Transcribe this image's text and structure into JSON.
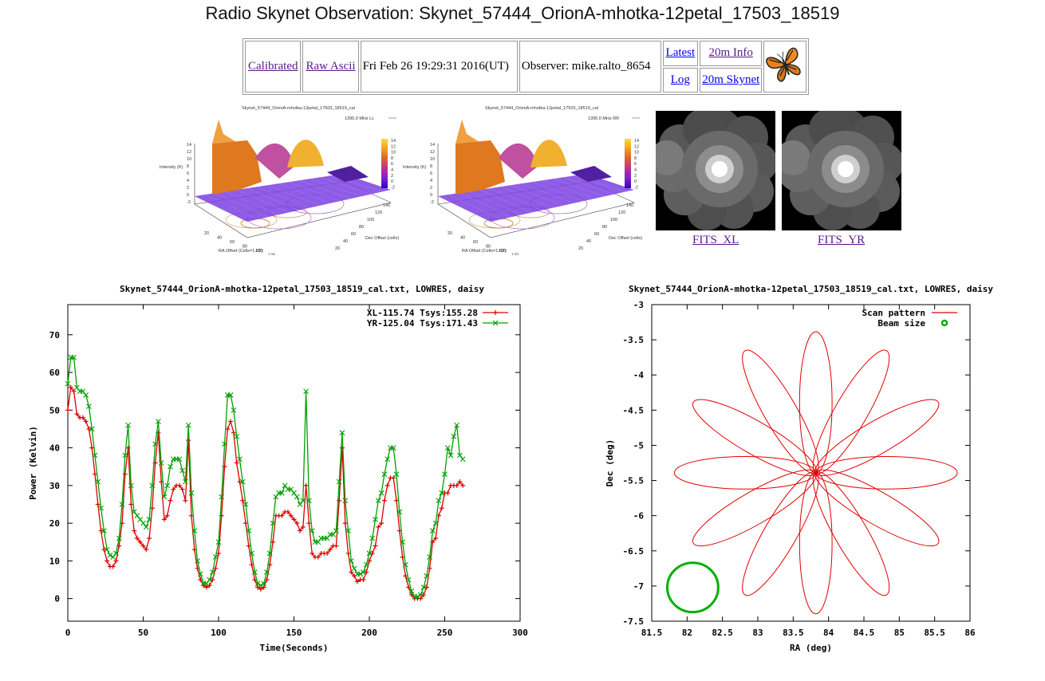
{
  "page": {
    "title": "Radio Skynet Observation: Skynet_57444_OrionA-mhotka-12petal_17503_18519"
  },
  "nav": {
    "calibrated": "Calibrated",
    "raw_ascii": "Raw Ascii",
    "timestamp": "Fri Feb 26 19:29:31 2016(UT)",
    "observer": "Observer: mike.ralto_8654",
    "latest": "Latest",
    "log": "Log",
    "info_20m": "20m Info",
    "skynet_20m": "20m Skynet",
    "logo_icon": "butterfly-icon"
  },
  "thumbnails": {
    "ll": {
      "title": "Skynet_57444_OrionA-mhotka-12petal_17503_18519_cal",
      "legend": "1395.0 MHz LL",
      "zlabel": "Intensity (K)",
      "xlabel": "RA Offset (Cells=1.62')",
      "ylabel": "Dec Offset (cells)",
      "colorbar_ticks": [
        "14",
        "12",
        "10",
        "8",
        "6",
        "4",
        "2",
        "0",
        "-2"
      ],
      "ztick_labels": [
        "14",
        "12",
        "10",
        "8",
        "6",
        "4",
        "2",
        "0",
        "-2"
      ],
      "ra_ticks": [
        "20",
        "40",
        "60",
        "80",
        "100",
        "120",
        "140"
      ],
      "dec_ticks": [
        "20",
        "40",
        "60",
        "80",
        "100",
        "120",
        "140"
      ]
    },
    "rr": {
      "title": "Skynet_57444_OrionA-mhotka-12petal_17503_18519_cal",
      "legend": "1395.0 MHz RR",
      "zlabel": "Intensity (K)",
      "xlabel": "RA Offset (Cells=1.62')",
      "ylabel": "Dec Offset (cells)",
      "colorbar_ticks": [
        "14",
        "12",
        "10",
        "8",
        "6",
        "4",
        "2",
        "0",
        "-2"
      ],
      "ztick_labels": [
        "14",
        "12",
        "10",
        "8",
        "6",
        "4",
        "2",
        "0",
        "-2"
      ],
      "ra_ticks": [
        "20",
        "40",
        "60",
        "80",
        "100",
        "120",
        "140"
      ],
      "dec_ticks": [
        "20",
        "40",
        "60",
        "80",
        "100",
        "120",
        "140"
      ]
    },
    "fits_xl": "FITS_XL",
    "fits_yr": "FITS_YR"
  },
  "chart_data": [
    {
      "type": "line",
      "title": "Skynet_57444_OrionA-mhotka-12petal_17503_18519_cal.txt, LOWRES, daisy",
      "xlabel": "Time(Seconds)",
      "ylabel": "Power (Kelvin)",
      "xlim": [
        0,
        300
      ],
      "ylim": [
        -6,
        78
      ],
      "x_ticks": [
        0,
        50,
        100,
        150,
        200,
        250,
        300
      ],
      "y_ticks": [
        0,
        10,
        20,
        30,
        40,
        50,
        60,
        70
      ],
      "legend_position": "top-right",
      "grid": false,
      "series": [
        {
          "name": "XL-115.74 Tsys:155.28",
          "color": "#e00000",
          "x": [
            0,
            2,
            4,
            6,
            8,
            10,
            12,
            14,
            16,
            18,
            20,
            22,
            24,
            26,
            28,
            30,
            32,
            34,
            36,
            38,
            40,
            42,
            44,
            46,
            48,
            50,
            52,
            54,
            56,
            58,
            60,
            62,
            64,
            66,
            68,
            70,
            72,
            74,
            76,
            78,
            80,
            82,
            84,
            86,
            88,
            90,
            92,
            94,
            96,
            98,
            100,
            102,
            104,
            106,
            108,
            110,
            112,
            114,
            116,
            118,
            120,
            122,
            124,
            126,
            128,
            130,
            132,
            134,
            136,
            138,
            140,
            142,
            144,
            146,
            148,
            150,
            152,
            154,
            156,
            158,
            160,
            162,
            164,
            166,
            168,
            170,
            172,
            174,
            176,
            178,
            180,
            182,
            184,
            186,
            188,
            190,
            192,
            194,
            196,
            198,
            200,
            202,
            204,
            206,
            208,
            210,
            212,
            214,
            216,
            218,
            220,
            222,
            224,
            226,
            228,
            230,
            232,
            234,
            236,
            238,
            240,
            242,
            244,
            246,
            248,
            250,
            252,
            254,
            256,
            258,
            260,
            262
          ],
          "values": [
            50,
            56,
            55,
            49,
            48,
            48,
            47,
            45,
            40,
            33,
            25,
            18,
            13,
            10,
            8.5,
            8.5,
            10,
            14,
            20,
            33,
            40,
            25,
            18,
            16,
            15,
            14,
            13,
            16,
            24,
            36,
            44,
            31,
            21,
            22,
            26,
            29,
            30,
            30,
            29,
            26,
            42,
            22,
            13,
            8,
            5,
            3.5,
            3,
            3.5,
            5,
            8,
            12,
            22,
            35,
            45,
            47,
            44,
            36,
            31,
            26,
            20,
            14,
            9,
            5,
            3,
            2.5,
            3,
            5,
            9,
            15,
            22,
            22,
            22,
            23,
            23,
            22,
            21,
            20,
            18,
            19,
            30,
            20,
            12,
            11,
            11,
            12,
            12,
            12,
            13,
            14,
            14,
            26,
            40,
            20,
            12,
            7,
            6,
            4.5,
            5,
            5,
            7,
            10,
            12,
            14,
            19,
            20,
            26,
            30,
            32,
            32,
            26,
            18,
            11,
            6,
            3,
            1,
            0,
            0,
            0,
            1,
            3,
            8,
            15,
            16,
            22,
            24,
            28,
            28,
            30,
            30,
            30,
            31,
            30
          ]
        },
        {
          "name": "YR-125.04 Tsys:171.43",
          "color": "#00a000",
          "x": [
            0,
            2,
            4,
            6,
            8,
            10,
            12,
            14,
            16,
            18,
            20,
            22,
            24,
            26,
            28,
            30,
            32,
            34,
            36,
            38,
            40,
            42,
            44,
            46,
            48,
            50,
            52,
            54,
            56,
            58,
            60,
            62,
            64,
            66,
            68,
            70,
            72,
            74,
            76,
            78,
            80,
            82,
            84,
            86,
            88,
            90,
            92,
            94,
            96,
            98,
            100,
            102,
            104,
            106,
            108,
            110,
            112,
            114,
            116,
            118,
            120,
            122,
            124,
            126,
            128,
            130,
            132,
            134,
            136,
            138,
            140,
            142,
            144,
            146,
            148,
            150,
            152,
            154,
            156,
            158,
            160,
            162,
            164,
            166,
            168,
            170,
            172,
            174,
            176,
            178,
            180,
            182,
            184,
            186,
            188,
            190,
            192,
            194,
            196,
            198,
            200,
            202,
            204,
            206,
            208,
            210,
            212,
            214,
            216,
            218,
            220,
            222,
            224,
            226,
            228,
            230,
            232,
            234,
            236,
            238,
            240,
            242,
            244,
            246,
            248,
            250,
            252,
            254,
            256,
            258,
            260,
            262
          ],
          "values": [
            57,
            64,
            64,
            56,
            55,
            55,
            54,
            51,
            45,
            38,
            31,
            24,
            18,
            13,
            11.5,
            11,
            12,
            16,
            25,
            38,
            46,
            30,
            23,
            22,
            21,
            20,
            19,
            21,
            30,
            41,
            47,
            36,
            27,
            30,
            35,
            37,
            37,
            37,
            34,
            31,
            46,
            28,
            18,
            10,
            6.5,
            4,
            4,
            5,
            7,
            11,
            15,
            27,
            41,
            54,
            54,
            50,
            43,
            37,
            31,
            25,
            18,
            12,
            7,
            4,
            3.5,
            4,
            7,
            12,
            20,
            27,
            28,
            28,
            30,
            29,
            29,
            28,
            27,
            25,
            26,
            55,
            26,
            18,
            15,
            15,
            16,
            16,
            16,
            17,
            17,
            18,
            31,
            44,
            26,
            18,
            10,
            8,
            6.5,
            6.5,
            7,
            9,
            12,
            16,
            21,
            26,
            28,
            33,
            37,
            40,
            40,
            33,
            23,
            15,
            9,
            5,
            2,
            0.5,
            0.5,
            1,
            3,
            6,
            11,
            18,
            20,
            26,
            28,
            33,
            40,
            38,
            43,
            46,
            38,
            37
          ]
        }
      ]
    },
    {
      "type": "line",
      "title": "Skynet_57444_OrionA-mhotka-12petal_17503_18519_cal.txt, LOWRES, daisy",
      "xlabel": "RA (deg)",
      "ylabel": "Dec (deg)",
      "xlim": [
        81.5,
        86
      ],
      "ylim": [
        -7.5,
        -3
      ],
      "x_ticks": [
        81.5,
        82,
        82.5,
        83,
        83.5,
        84,
        84.5,
        85,
        85.5,
        86
      ],
      "y_ticks": [
        -3,
        -3.5,
        -4,
        -4.5,
        -5,
        -5.5,
        -6,
        -6.5,
        -7,
        -7.5
      ],
      "legend_position": "top-right",
      "grid": false,
      "pattern": {
        "center_ra": 83.82,
        "center_dec": -5.39,
        "petals": 12,
        "petal_radius_deg": 2.0,
        "petal_half_width_deg": 0.23
      },
      "beam": {
        "center_ra": 82.08,
        "center_dec": -7.02,
        "radius_deg": 0.36
      },
      "series": [
        {
          "name": "Scan pattern",
          "color": "#e00000"
        },
        {
          "name": "Beam size",
          "color": "#00b000"
        }
      ]
    }
  ]
}
